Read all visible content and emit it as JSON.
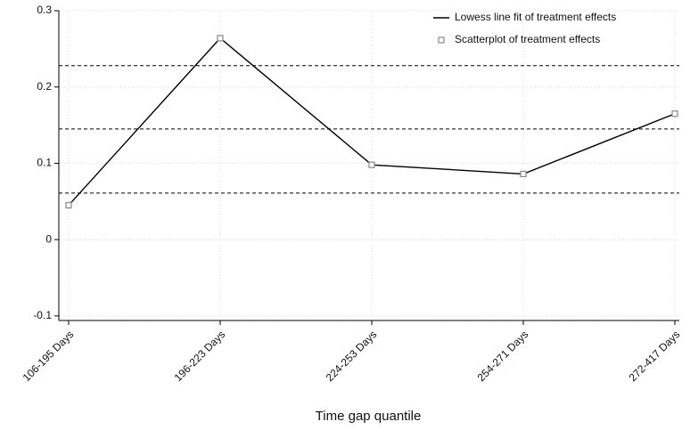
{
  "chart_data": {
    "type": "line",
    "x_label": "Time gap quantile",
    "categories": [
      "106-195 Days",
      "196-223 Days",
      "224-253 Days",
      "254-271 Days",
      "272-417 Days"
    ],
    "series": [
      {
        "name": "Lowess line fit of treatment effects",
        "type": "line",
        "color": "#000000",
        "values": [
          0.045,
          0.264,
          0.098,
          0.086,
          0.165
        ]
      },
      {
        "name": "Scatterplot of treatment effects",
        "type": "scatter",
        "color": "#888888",
        "values": [
          0.045,
          0.264,
          0.098,
          0.086,
          0.165
        ]
      }
    ],
    "reference_lines": [
      0.228,
      0.145,
      0.061
    ],
    "ylim": [
      -0.106,
      0.3
    ],
    "yticks": [
      0.3,
      0.2,
      0.1,
      0,
      -0.1
    ],
    "grid": true,
    "legend": "top-right"
  }
}
